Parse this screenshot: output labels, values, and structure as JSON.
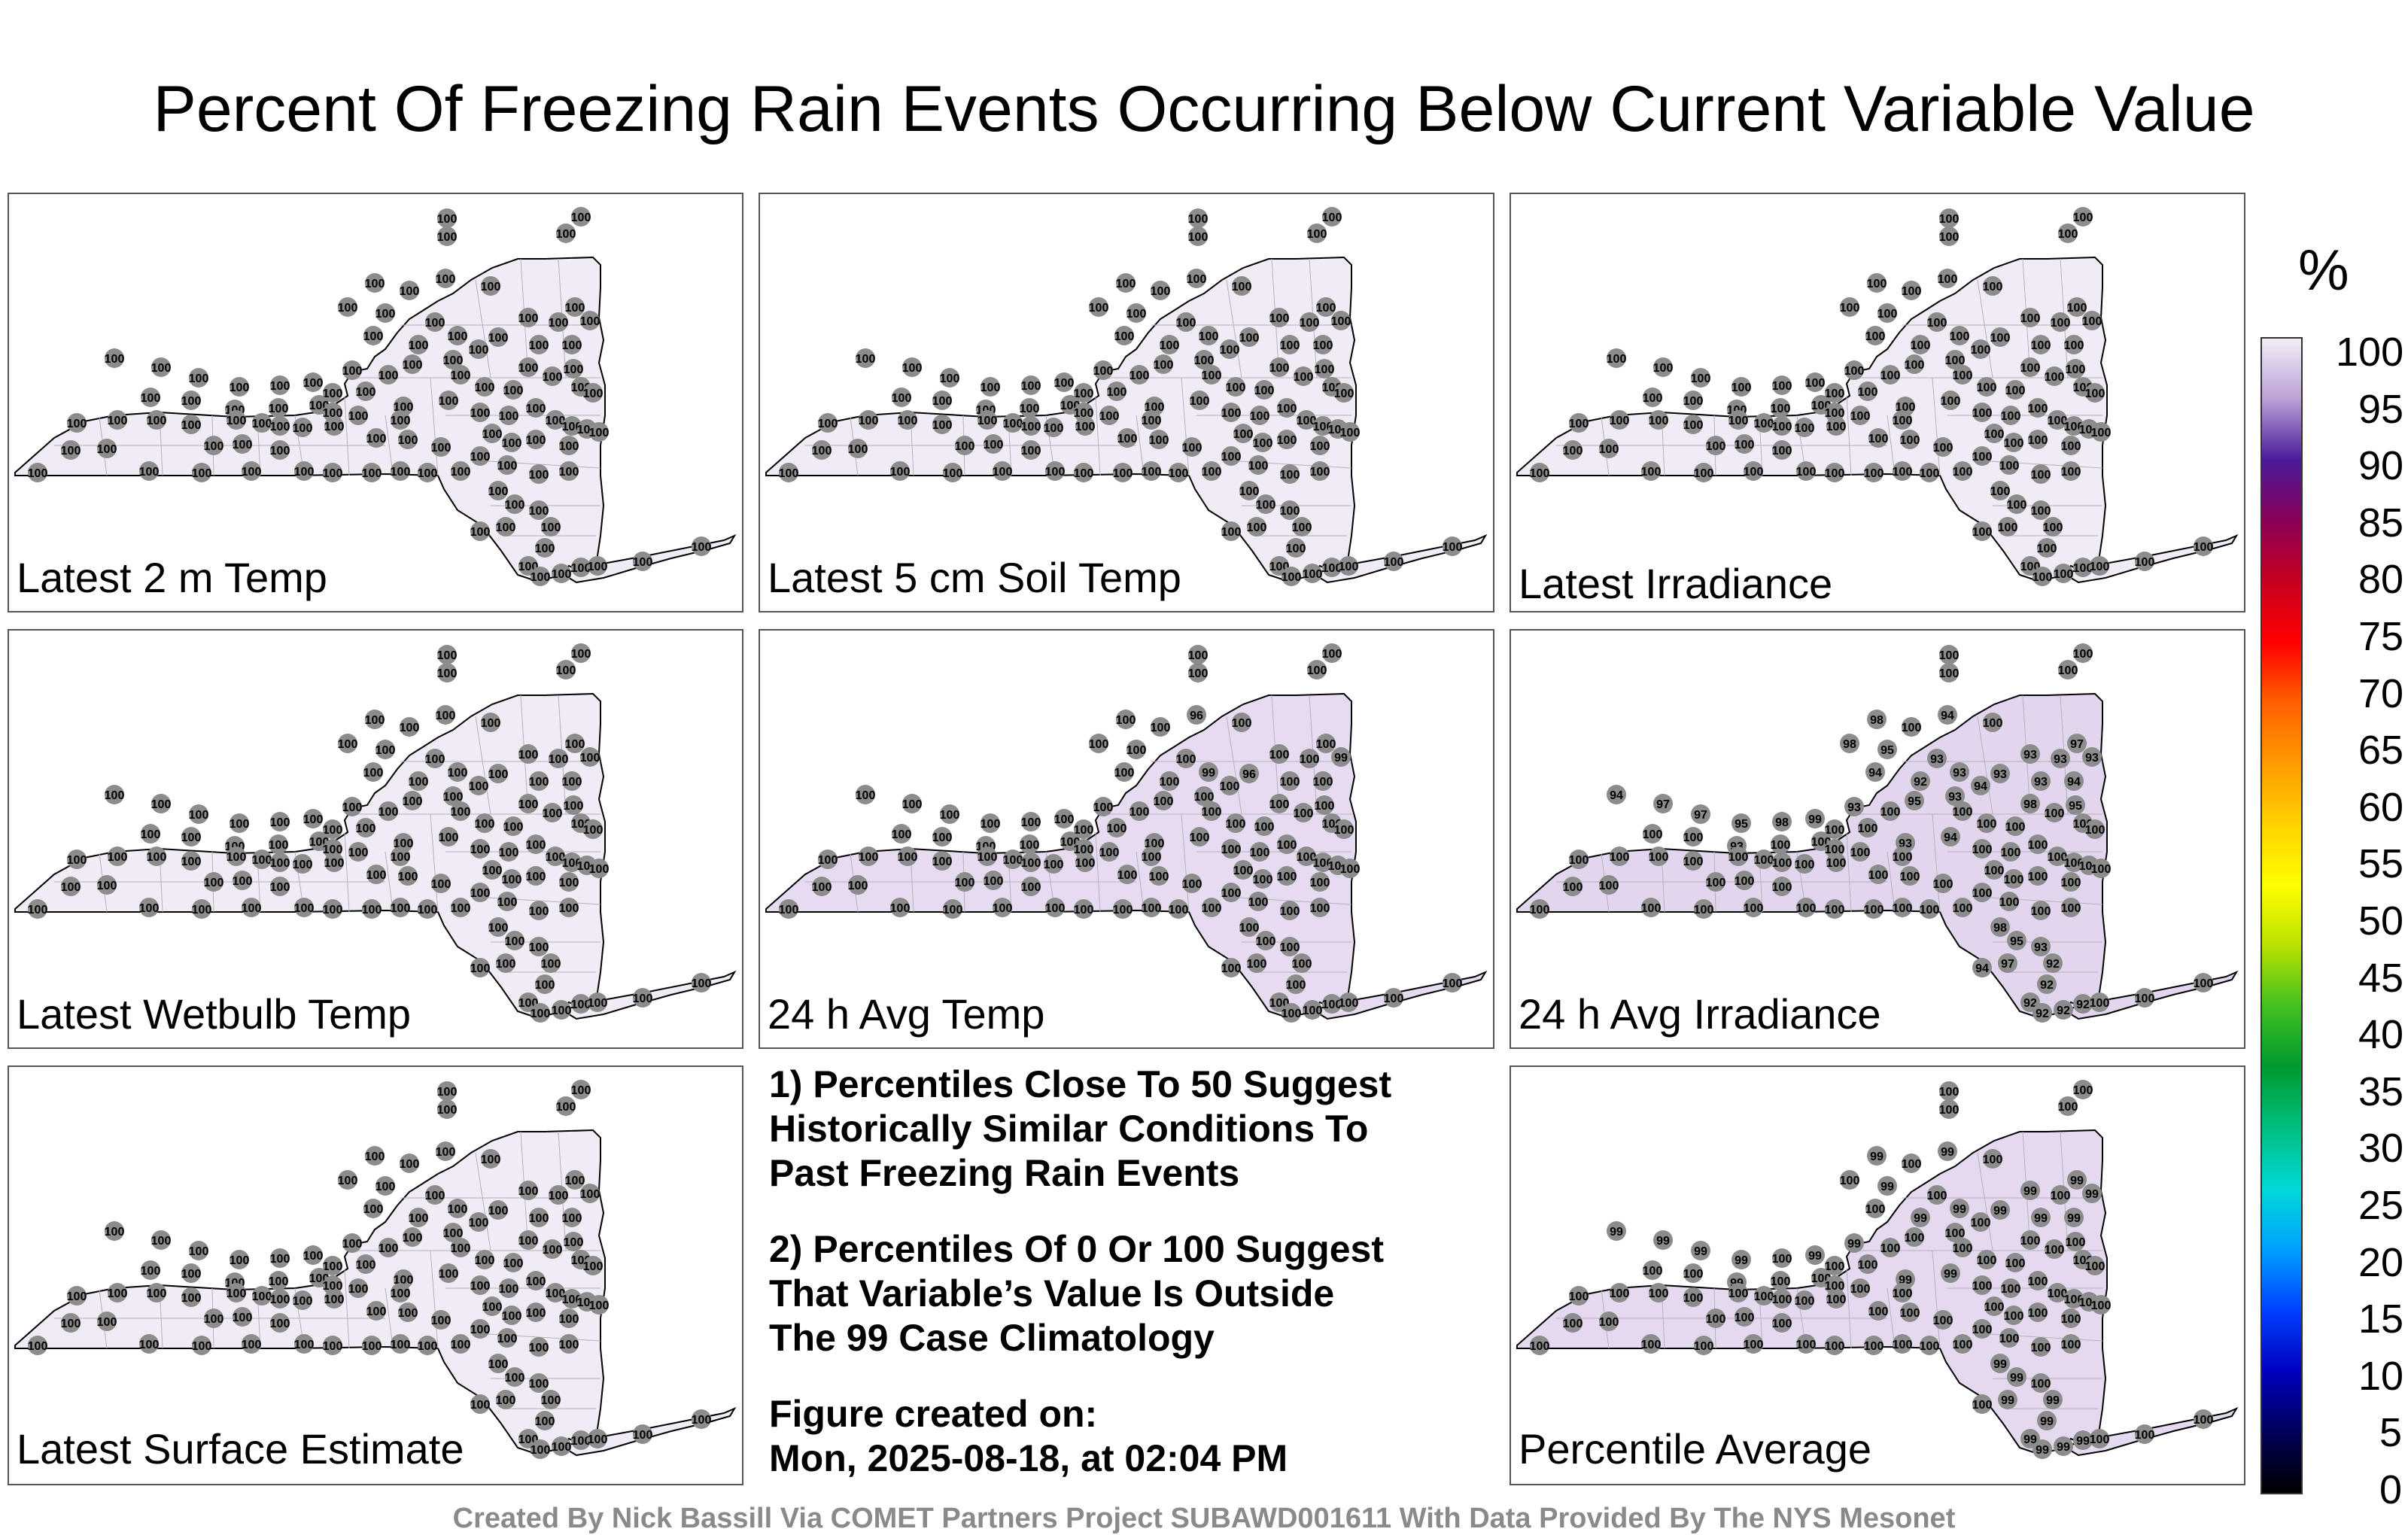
{
  "title": "Percent Of Freezing Rain Events Occurring Below Current Variable Value",
  "colorbar": {
    "unit": "%",
    "ticks": [
      "100",
      "95",
      "90",
      "85",
      "80",
      "75",
      "70",
      "65",
      "60",
      "55",
      "50",
      "45",
      "40",
      "35",
      "30",
      "25",
      "20",
      "15",
      "10",
      "5",
      "0"
    ],
    "gradient_stops": [
      "#f3eef7",
      "#b9a0d6",
      "#4a1a9a",
      "#8a0058",
      "#c80020",
      "#ff0000",
      "#ff6000",
      "#ff9a00",
      "#ffd200",
      "#ffff00",
      "#b8e000",
      "#40c020",
      "#009a30",
      "#00c080",
      "#00d8d8",
      "#00a0ff",
      "#0040ff",
      "#0000c0",
      "#00005a",
      "#000000"
    ]
  },
  "panels": [
    {
      "id": "latest-2m-temp",
      "label": "Latest 2 m Temp",
      "fill": "#f1ebf5",
      "default_value": "100",
      "overrides": []
    },
    {
      "id": "latest-5cm-soil-temp",
      "label": "Latest 5 cm Soil Temp",
      "fill": "#f1ebf5",
      "default_value": "100",
      "overrides": []
    },
    {
      "id": "latest-irradiance",
      "label": "Latest Irradiance",
      "fill": "#f1ebf5",
      "default_value": "100",
      "overrides": []
    },
    {
      "id": "latest-wetbulb-temp",
      "label": "Latest Wetbulb Temp",
      "fill": "#f1ebf5",
      "default_value": "100",
      "overrides": []
    },
    {
      "id": "24h-avg-temp",
      "label": "24 h Avg Temp",
      "fill": "#e6dbf0",
      "default_value": "100",
      "overrides": [
        {
          "i": 5,
          "v": "96"
        },
        {
          "i": 14,
          "v": "99"
        },
        {
          "i": 15,
          "v": "99"
        },
        {
          "i": 16,
          "v": "96"
        }
      ]
    },
    {
      "id": "24h-avg-irradiance",
      "label": "24 h Avg Irradiance",
      "fill": "#e2d5ee",
      "default_value": "100",
      "overrides": [
        {
          "i": 4,
          "v": "98"
        },
        {
          "i": 5,
          "v": "94"
        },
        {
          "i": 8,
          "v": "98"
        },
        {
          "i": 9,
          "v": "97"
        },
        {
          "i": 10,
          "v": "95"
        },
        {
          "i": 11,
          "v": "93"
        },
        {
          "i": 12,
          "v": "93"
        },
        {
          "i": 13,
          "v": "93"
        },
        {
          "i": 14,
          "v": "93"
        },
        {
          "i": 15,
          "v": "93"
        },
        {
          "i": 16,
          "v": "93"
        },
        {
          "i": 17,
          "v": "94"
        },
        {
          "i": 18,
          "v": "92"
        },
        {
          "i": 19,
          "v": "93"
        },
        {
          "i": 20,
          "v": "94"
        },
        {
          "i": 21,
          "v": "95"
        },
        {
          "i": 22,
          "v": "98"
        },
        {
          "i": 23,
          "v": "94"
        },
        {
          "i": 24,
          "v": "93"
        },
        {
          "i": 25,
          "v": "95"
        },
        {
          "i": 27,
          "v": "93"
        },
        {
          "i": 28,
          "v": "93"
        },
        {
          "i": 29,
          "v": "94"
        },
        {
          "i": 30,
          "v": "94"
        },
        {
          "i": 31,
          "v": "97"
        },
        {
          "i": 32,
          "v": "97"
        },
        {
          "i": 33,
          "v": "95"
        },
        {
          "i": 34,
          "v": "98"
        },
        {
          "i": 35,
          "v": "99"
        },
        {
          "i": 40,
          "v": "93"
        },
        {
          "i": 78,
          "v": "98"
        },
        {
          "i": 79,
          "v": "95"
        },
        {
          "i": 80,
          "v": "93"
        },
        {
          "i": 81,
          "v": "97"
        },
        {
          "i": 82,
          "v": "94"
        },
        {
          "i": 83,
          "v": "92"
        },
        {
          "i": 84,
          "v": "92"
        },
        {
          "i": 85,
          "v": "92"
        },
        {
          "i": 86,
          "v": "92"
        },
        {
          "i": 87,
          "v": "92"
        },
        {
          "i": 88,
          "v": "92"
        }
      ]
    },
    {
      "id": "latest-surface-estimate",
      "label": "Latest Surface Estimate",
      "fill": "#f1ebf5",
      "default_value": "100",
      "overrides": []
    },
    {
      "id": "percentile-average",
      "label": "Percentile Average",
      "fill": "#e4d9ef",
      "default_value": "100",
      "overrides": [
        {
          "i": 4,
          "v": "99"
        },
        {
          "i": 5,
          "v": "99"
        },
        {
          "i": 9,
          "v": "99"
        },
        {
          "i": 10,
          "v": "99"
        },
        {
          "i": 12,
          "v": "99"
        },
        {
          "i": 14,
          "v": "99"
        },
        {
          "i": 15,
          "v": "99"
        },
        {
          "i": 16,
          "v": "99"
        },
        {
          "i": 18,
          "v": "99"
        },
        {
          "i": 19,
          "v": "99"
        },
        {
          "i": 20,
          "v": "99"
        },
        {
          "i": 27,
          "v": "99"
        },
        {
          "i": 28,
          "v": "99"
        },
        {
          "i": 29,
          "v": "99"
        },
        {
          "i": 30,
          "v": "99"
        },
        {
          "i": 31,
          "v": "99"
        },
        {
          "i": 32,
          "v": "99"
        },
        {
          "i": 33,
          "v": "99"
        },
        {
          "i": 35,
          "v": "99"
        },
        {
          "i": 40,
          "v": "99"
        },
        {
          "i": 78,
          "v": "99"
        },
        {
          "i": 79,
          "v": "99"
        },
        {
          "i": 81,
          "v": "99"
        },
        {
          "i": 83,
          "v": "99"
        },
        {
          "i": 84,
          "v": "99"
        },
        {
          "i": 85,
          "v": "99"
        },
        {
          "i": 86,
          "v": "99"
        },
        {
          "i": 87,
          "v": "99"
        },
        {
          "i": 88,
          "v": "99"
        }
      ]
    }
  ],
  "notes": [
    [
      "1) Percentiles Close To 50 Suggest",
      "Historically Similar Conditions To",
      "Past Freezing Rain Events"
    ],
    [
      "2) Percentiles Of 0 Or 100 Suggest",
      "That Variable’s Value Is Outside",
      "The 99 Case Climatology"
    ],
    [
      "Figure created on:",
      "Mon, 2025-08-18, at 02:04 PM"
    ]
  ],
  "credit": "Created By Nick Bassill Via COMET Partners Project SUBAWD001611 With Data Provided By The NYS Mesonet"
}
